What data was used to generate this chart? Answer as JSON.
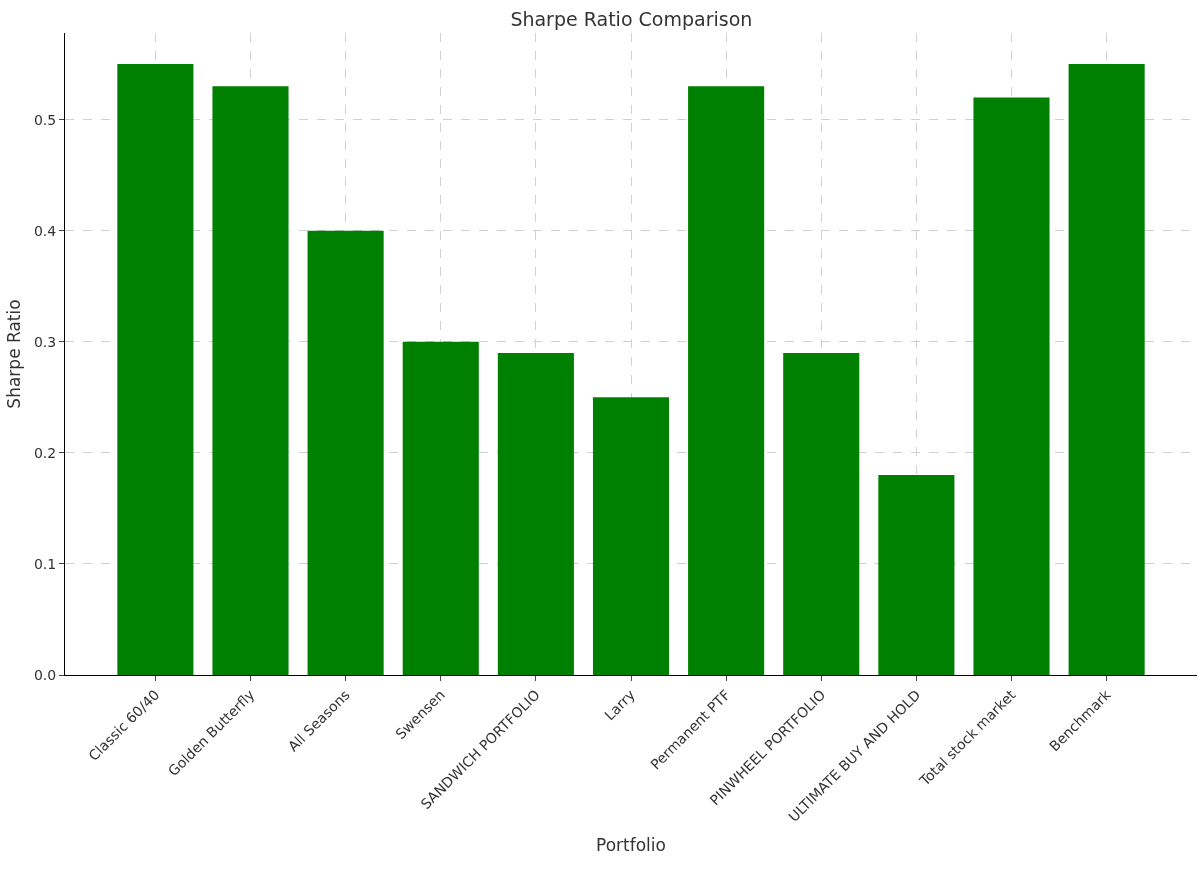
{
  "chart_data": {
    "type": "bar",
    "title": "Sharpe Ratio Comparison",
    "xlabel": "Portfolio",
    "ylabel": "Sharpe Ratio",
    "categories": [
      "Classic 60/40",
      "Golden Butterfly",
      "All Seasons",
      "Swensen",
      "SANDWICH PORTFOLIO",
      "Larry",
      "Permanent PTF",
      "PINWHEEL PORTFOLIO",
      "ULTIMATE BUY AND HOLD",
      "Total stock market",
      "Benchmark"
    ],
    "values": [
      0.55,
      0.53,
      0.4,
      0.3,
      0.29,
      0.25,
      0.53,
      0.29,
      0.18,
      0.52,
      0.55
    ],
    "color": "#008000",
    "ylim": [
      0,
      0.578
    ],
    "yticks": [
      {
        "value": 0,
        "label": "0.0"
      },
      {
        "value": 0.1,
        "label": "0.1"
      },
      {
        "value": 0.2,
        "label": "0.2"
      },
      {
        "value": 0.3,
        "label": "0.3"
      },
      {
        "value": 0.4,
        "label": "0.4"
      },
      {
        "value": 0.5,
        "label": "0.5"
      }
    ],
    "grid": true
  }
}
